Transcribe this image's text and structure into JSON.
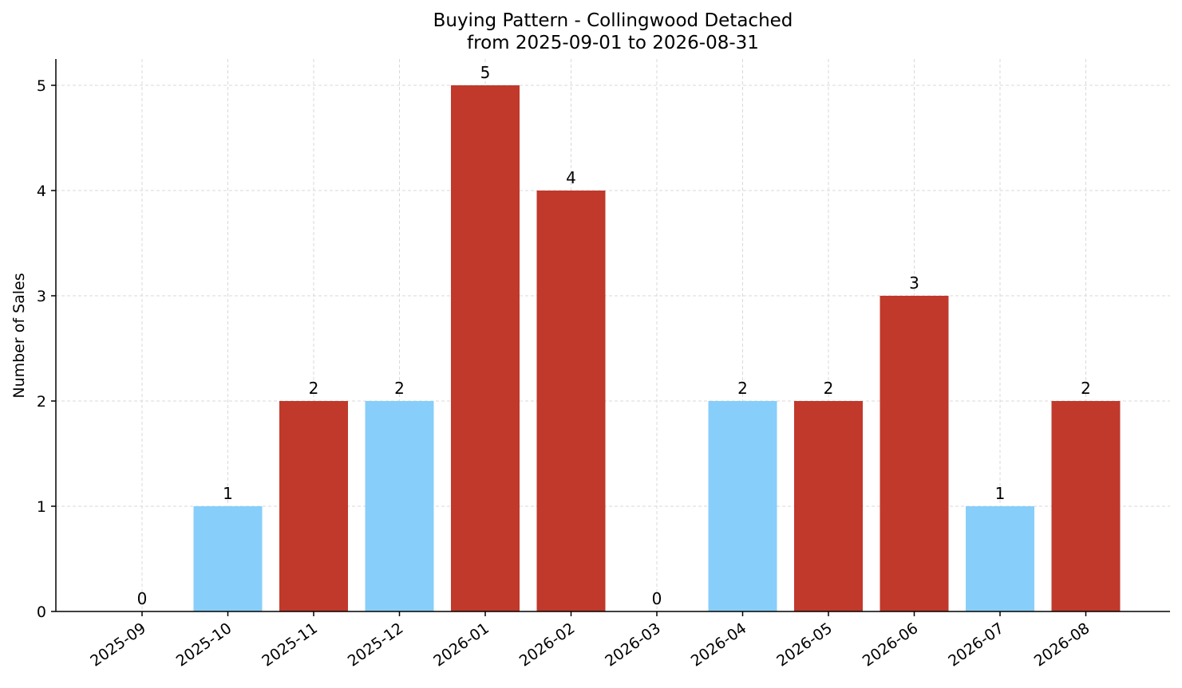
{
  "chart_data": {
    "type": "bar",
    "title_line1": "Buying Pattern - Collingwood Detached",
    "title_line2": "from 2025-09-01 to 2026-08-31",
    "xlabel": "",
    "ylabel": "Number of Sales",
    "ylim": [
      0,
      5.25
    ],
    "yticks": [
      0,
      1,
      2,
      3,
      4,
      5
    ],
    "grid": true,
    "categories": [
      "2025-09",
      "2025-10",
      "2025-11",
      "2025-12",
      "2026-01",
      "2026-02",
      "2026-03",
      "2026-04",
      "2026-05",
      "2026-06",
      "2026-07",
      "2026-08"
    ],
    "values": [
      0,
      1,
      2,
      2,
      5,
      4,
      0,
      2,
      2,
      3,
      1,
      2
    ],
    "colors": [
      "#c0392b",
      "#87cefa",
      "#c0392b",
      "#87cefa",
      "#c0392b",
      "#c0392b",
      "#c0392b",
      "#87cefa",
      "#c0392b",
      "#c0392b",
      "#87cefa",
      "#c0392b"
    ]
  }
}
